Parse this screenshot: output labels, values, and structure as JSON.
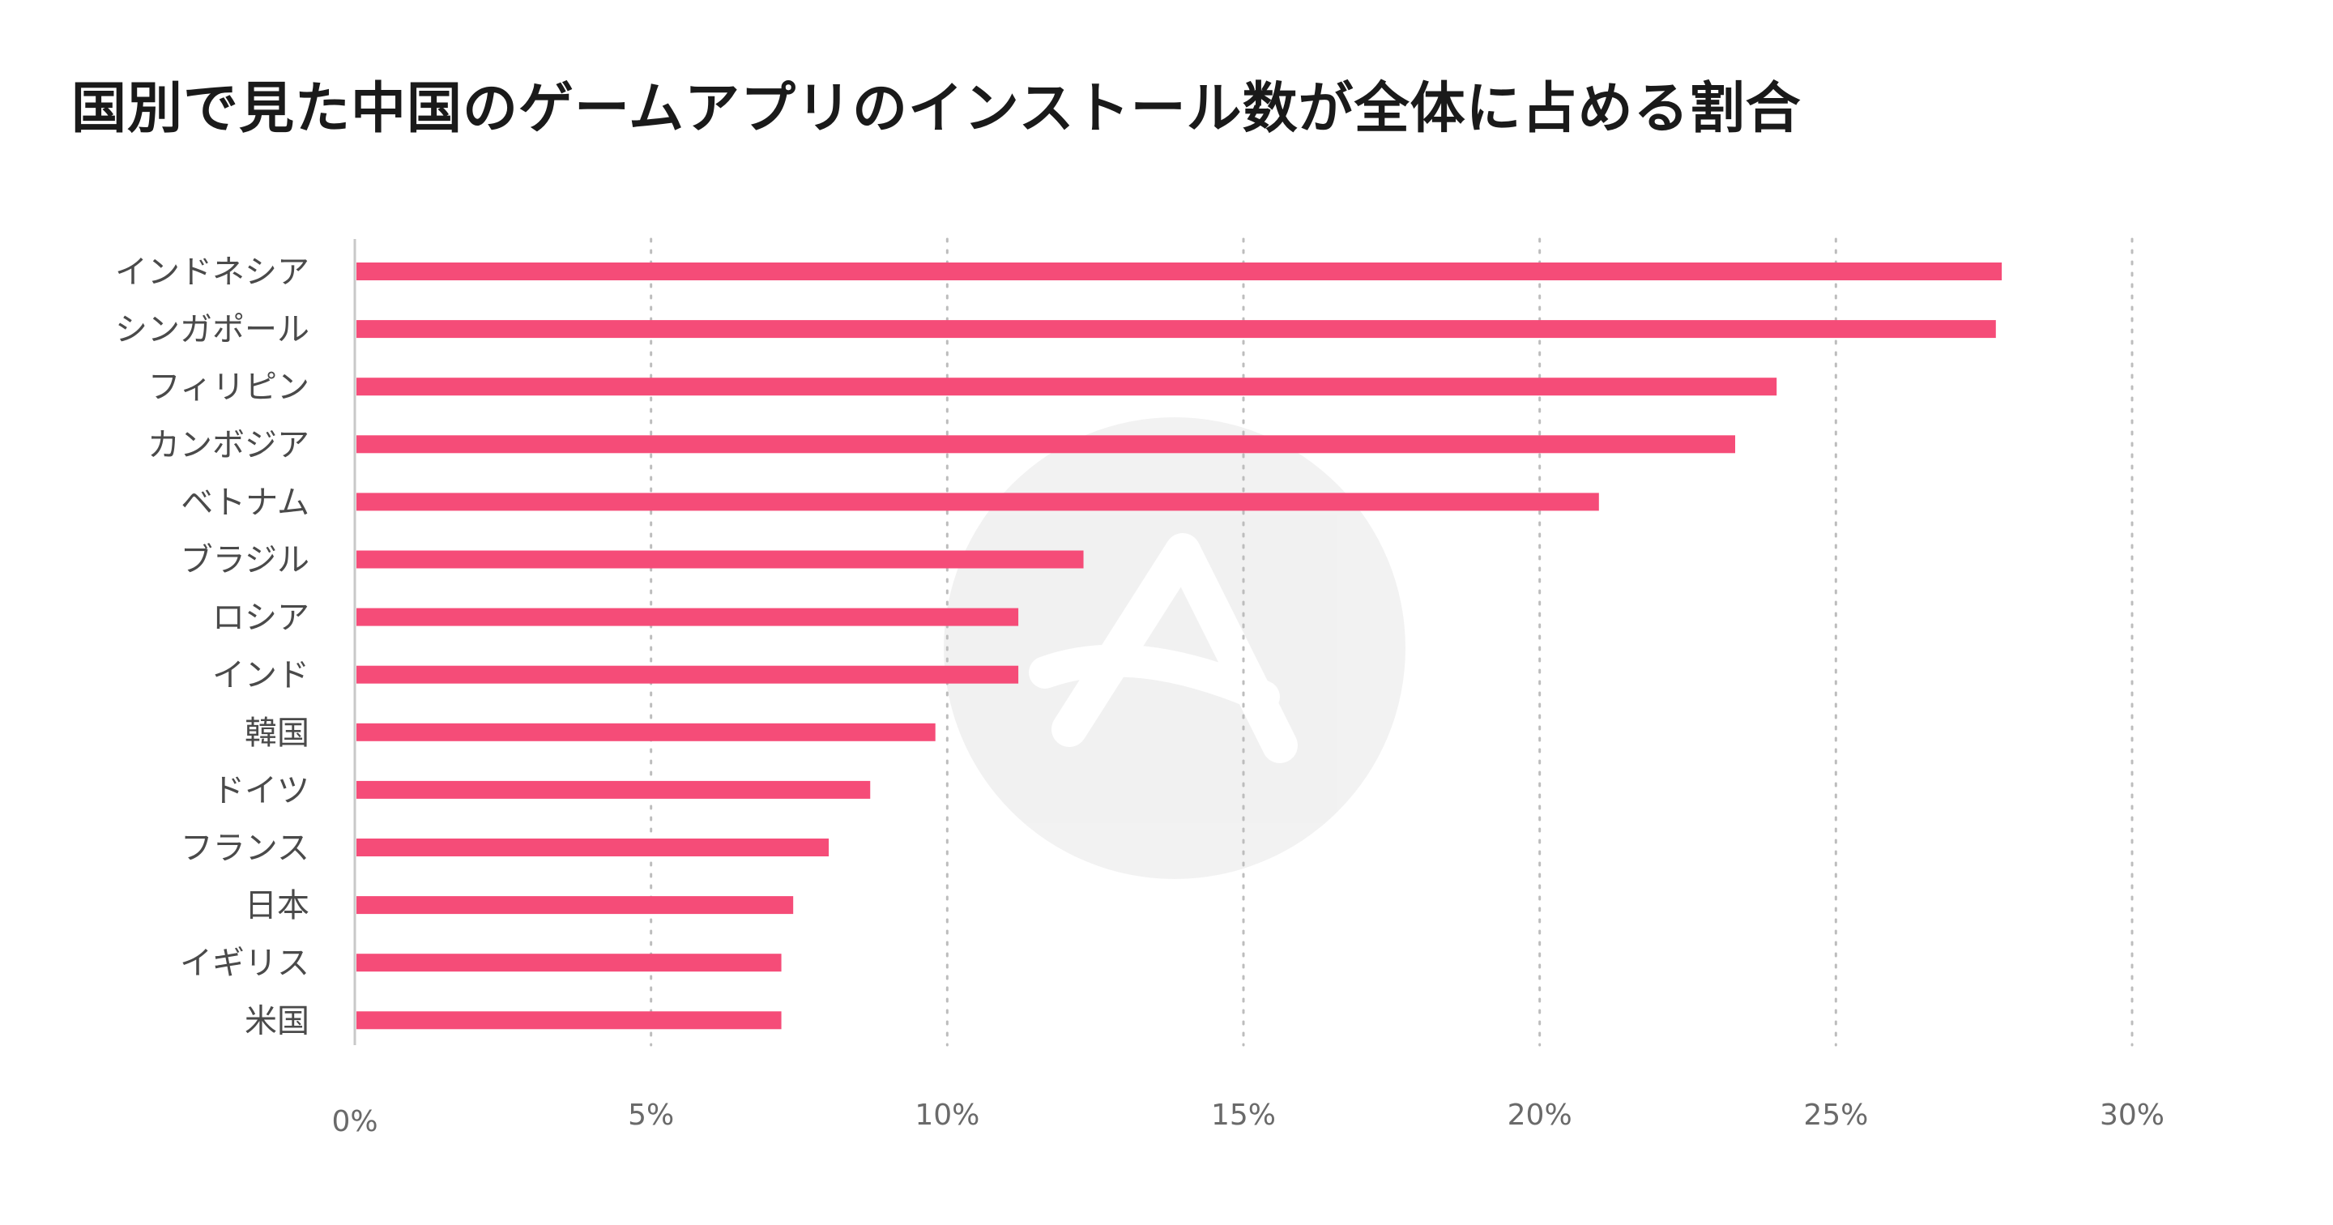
{
  "chart_data": {
    "type": "bar",
    "orientation": "horizontal",
    "title": "国別で見た中国のゲームアプリのインストール数が全体に占める割合",
    "xlabel": "",
    "ylabel": "",
    "categories": [
      "インドネシア",
      "シンガポール",
      "フィリピン",
      "カンボジア",
      "ベトナム",
      "ブラジル",
      "ロシア",
      "インド",
      "韓国",
      "ドイツ",
      "フランス",
      "日本",
      "イギリス",
      "米国"
    ],
    "values": [
      27.8,
      27.7,
      24.0,
      23.3,
      21.0,
      12.3,
      11.2,
      11.2,
      9.8,
      8.7,
      8.0,
      7.4,
      7.2,
      7.2
    ],
    "unit": "%",
    "xlim": [
      0,
      30
    ],
    "ticks": [
      0,
      5,
      10,
      15,
      20,
      25,
      30
    ],
    "tick_labels": [
      "0%",
      "5%",
      "10%",
      "15%",
      "20%",
      "25%",
      "30%"
    ],
    "grid": true,
    "grid_style": "dotted",
    "legend": "none",
    "bar_color": "#f54c78",
    "watermark_icon": "logo-watermark"
  }
}
